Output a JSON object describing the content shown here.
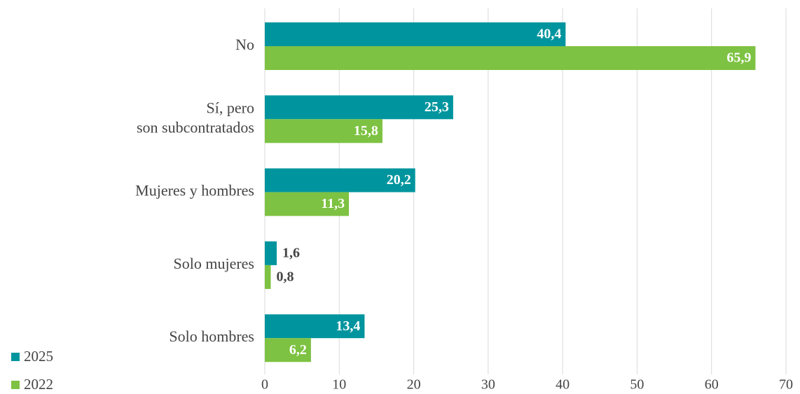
{
  "chart_data": {
    "type": "bar",
    "orientation": "horizontal",
    "categories": [
      "No",
      "Sí, pero\nson subcontratados",
      "Mujeres y hombres",
      "Solo mujeres",
      "Solo hombres"
    ],
    "series": [
      {
        "name": "2025",
        "color": "#00959e",
        "values": [
          40.4,
          25.3,
          20.2,
          1.6,
          13.4
        ],
        "value_labels": [
          "40,4",
          "25,3",
          "20,2",
          "1,6",
          "13,4"
        ]
      },
      {
        "name": "2022",
        "color": "#7dc242",
        "values": [
          65.9,
          15.8,
          11.3,
          0.8,
          6.2
        ],
        "value_labels": [
          "65,9",
          "15,8",
          "11,3",
          "0,8",
          "6,2"
        ]
      }
    ],
    "xlim": [
      0,
      70
    ],
    "xticks": [
      0,
      10,
      20,
      30,
      40,
      50,
      60,
      70
    ],
    "grid": true,
    "legend": "bottom-left"
  }
}
